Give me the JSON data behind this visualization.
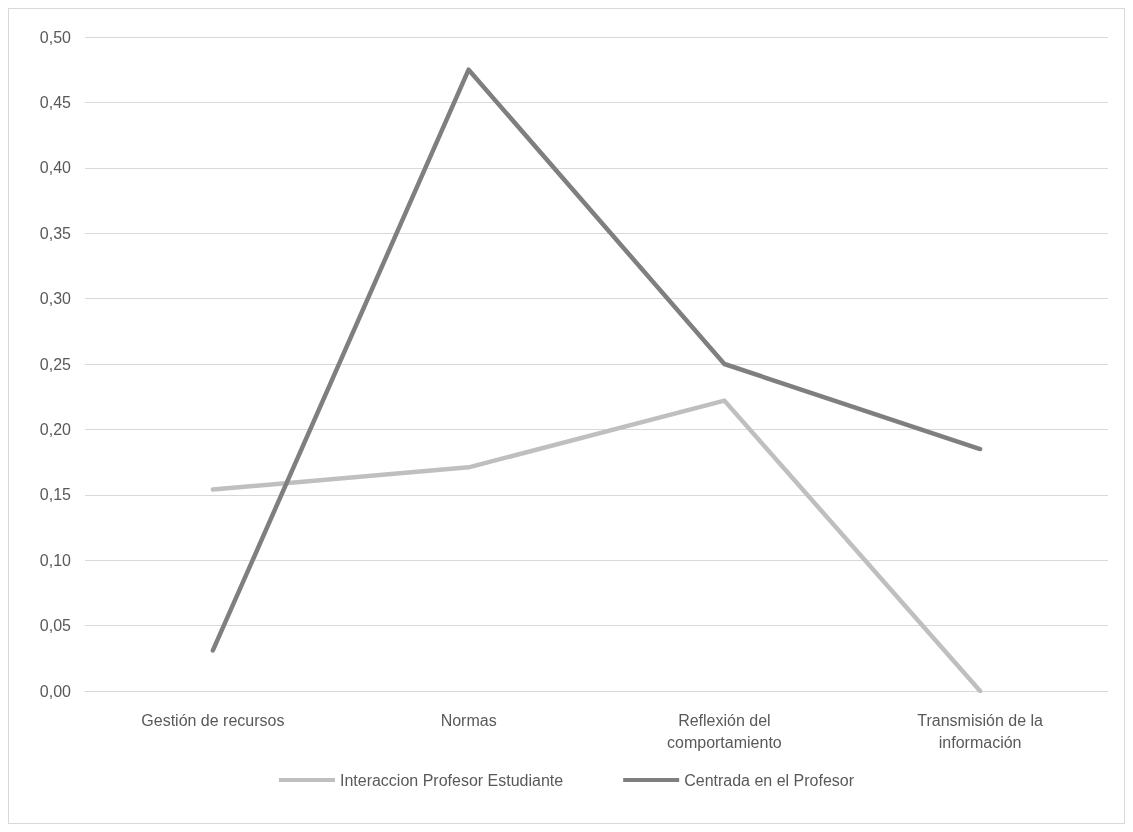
{
  "chart_data": {
    "type": "line",
    "categories": [
      "Gestión de recursos",
      "Normas",
      "Reflexión del\ncomportamiento",
      "Transmisión de la\ninformación"
    ],
    "series": [
      {
        "name": "Interaccion Profesor Estudiante",
        "color": "#bfbfbf",
        "values": [
          0.154,
          0.171,
          0.222,
          0.0
        ]
      },
      {
        "name": "Centrada en el Profesor",
        "color": "#7f7f7f",
        "values": [
          0.031,
          0.475,
          0.25,
          0.185
        ]
      }
    ],
    "ylim": [
      0,
      0.5
    ],
    "yticks": [
      {
        "value": 0,
        "label": "0,00"
      },
      {
        "value": 0.05,
        "label": "0,05"
      },
      {
        "value": 0.1,
        "label": "0,10"
      },
      {
        "value": 0.15,
        "label": "0,15"
      },
      {
        "value": 0.2,
        "label": "0,20"
      },
      {
        "value": 0.25,
        "label": "0,25"
      },
      {
        "value": 0.3,
        "label": "0,30"
      },
      {
        "value": 0.35,
        "label": "0,35"
      },
      {
        "value": 0.4,
        "label": "0,40"
      },
      {
        "value": 0.45,
        "label": "0,45"
      },
      {
        "value": 0.5,
        "label": "0,50"
      }
    ],
    "grid": "y",
    "legend": "bottom",
    "marker": "none",
    "line_style": "solid"
  }
}
